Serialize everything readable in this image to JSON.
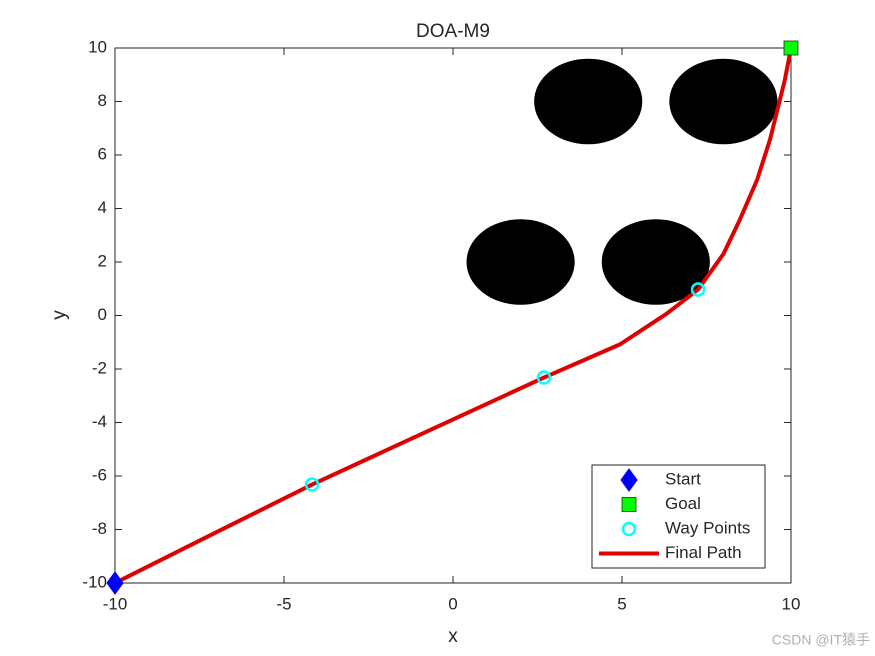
{
  "chart_data": {
    "type": "line",
    "title": "DOA-M9",
    "x_label": "x",
    "y_label": "y",
    "xlim": [
      -10,
      10
    ],
    "ylim": [
      -10,
      10
    ],
    "xticks": [
      -10,
      -5,
      0,
      5,
      10
    ],
    "yticks": [
      -10,
      -8,
      -6,
      -4,
      -2,
      0,
      2,
      4,
      6,
      8,
      10
    ],
    "legend_position": "southeast",
    "obstacles": {
      "x": [
        2,
        6,
        4,
        8
      ],
      "y": [
        2,
        2,
        8,
        8
      ],
      "r": [
        1.6,
        1.6,
        1.6,
        1.6
      ],
      "color": "#000000"
    },
    "series": [
      {
        "name": "Start",
        "color": "#0000ff",
        "marker": "diamond",
        "x": [
          -10
        ],
        "values": [
          -10
        ]
      },
      {
        "name": "Goal",
        "color": "#00ff00",
        "marker": "square",
        "x": [
          10
        ],
        "values": [
          10
        ]
      },
      {
        "name": "Way Points",
        "color": "#00ffff",
        "marker": "circle",
        "x": [
          -4.17,
          2.69,
          7.25
        ],
        "values": [
          -6.32,
          -2.32,
          0.97
        ]
      },
      {
        "name": "Final Path",
        "color": "#e00000",
        "marker": "line",
        "x": [
          -10,
          -7,
          -4.17,
          -1,
          2.69,
          4.94,
          6.3,
          7.25,
          8.0,
          8.49,
          9.0,
          9.38,
          9.82,
          10
        ],
        "values": [
          -10,
          -8.1,
          -6.32,
          -4.47,
          -2.32,
          -1.08,
          0.05,
          0.97,
          2.3,
          3.59,
          5.08,
          6.58,
          8.82,
          10
        ]
      }
    ],
    "watermark": "CSDN @IT猿手"
  }
}
